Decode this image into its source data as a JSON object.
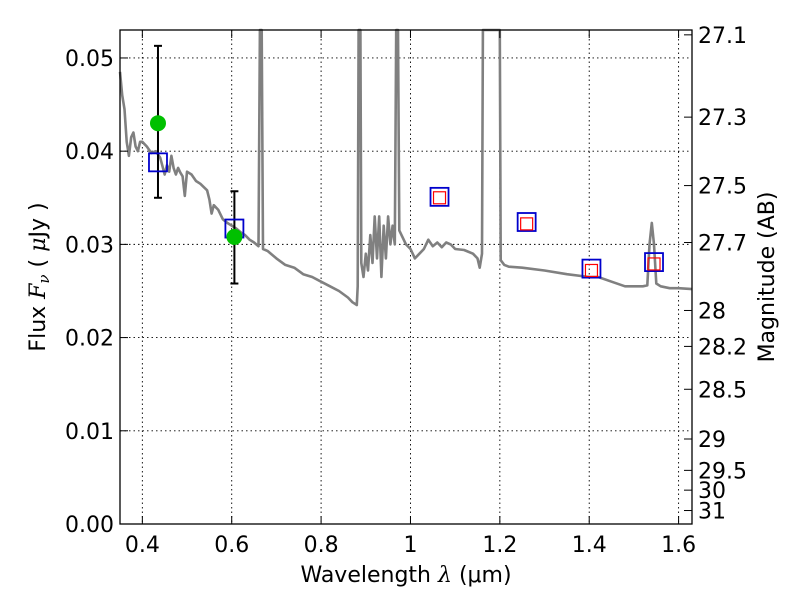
{
  "chart_data": {
    "type": "scatter",
    "x_axis": {
      "label_prefix": "Wavelength",
      "label_symbol": "λ",
      "label_unit": "(μm)",
      "range": [
        0.35,
        1.63
      ],
      "ticks": [
        0.4,
        0.6,
        0.8,
        1.0,
        1.2,
        1.4,
        1.6
      ],
      "tick_labels": [
        "0.4",
        "0.6",
        "0.8",
        "1",
        "1.2",
        "1.4",
        "1.6"
      ]
    },
    "y_axis_left": {
      "label_prefix": "Flux",
      "label_symbol": "F",
      "label_subscript": "ν",
      "label_unit_open": "(",
      "label_unit_mu": "μ",
      "label_unit_rest": "Jy )",
      "range": [
        0.0,
        0.053
      ],
      "ticks": [
        0.0,
        0.01,
        0.02,
        0.03,
        0.04,
        0.05
      ],
      "tick_labels": [
        "0.00",
        "0.01",
        "0.02",
        "0.03",
        "0.04",
        "0.05"
      ]
    },
    "y_axis_right": {
      "label": "Magnitude (AB)",
      "tick_labels": [
        "27.1",
        "27.3",
        "27.5",
        "27.7",
        "28",
        "28.2",
        "28.5",
        "29",
        "29.5",
        "30",
        "31"
      ]
    },
    "grid": true,
    "series": [
      {
        "kind": "line",
        "color": "#808080",
        "points": [
          [
            0.35,
            0.0485
          ],
          [
            0.355,
            0.046
          ],
          [
            0.36,
            0.0445
          ],
          [
            0.365,
            0.041
          ],
          [
            0.37,
            0.0395
          ],
          [
            0.375,
            0.0415
          ],
          [
            0.38,
            0.042
          ],
          [
            0.385,
            0.0405
          ],
          [
            0.39,
            0.04
          ],
          [
            0.395,
            0.041
          ],
          [
            0.4,
            0.041
          ],
          [
            0.41,
            0.0405
          ],
          [
            0.42,
            0.0398
          ],
          [
            0.43,
            0.04
          ],
          [
            0.44,
            0.0393
          ],
          [
            0.45,
            0.0375
          ],
          [
            0.455,
            0.0385
          ],
          [
            0.46,
            0.0378
          ],
          [
            0.465,
            0.0395
          ],
          [
            0.47,
            0.0382
          ],
          [
            0.475,
            0.0375
          ],
          [
            0.48,
            0.0382
          ],
          [
            0.485,
            0.0377
          ],
          [
            0.49,
            0.0373
          ],
          [
            0.495,
            0.0352
          ],
          [
            0.5,
            0.0378
          ],
          [
            0.51,
            0.0375
          ],
          [
            0.52,
            0.0368
          ],
          [
            0.53,
            0.0365
          ],
          [
            0.545,
            0.0358
          ],
          [
            0.55,
            0.0348
          ],
          [
            0.555,
            0.0333
          ],
          [
            0.56,
            0.0342
          ],
          [
            0.57,
            0.0337
          ],
          [
            0.58,
            0.0327
          ],
          [
            0.59,
            0.0323
          ],
          [
            0.6,
            0.032
          ],
          [
            0.61,
            0.0317
          ],
          [
            0.62,
            0.0313
          ],
          [
            0.63,
            0.031
          ],
          [
            0.64,
            0.0305
          ],
          [
            0.65,
            0.0302
          ],
          [
            0.66,
            0.0298
          ],
          [
            0.663,
            0.06
          ],
          [
            0.667,
            0.06
          ],
          [
            0.67,
            0.0295
          ],
          [
            0.68,
            0.0293
          ],
          [
            0.7,
            0.0285
          ],
          [
            0.72,
            0.0278
          ],
          [
            0.74,
            0.0275
          ],
          [
            0.76,
            0.0268
          ],
          [
            0.78,
            0.0265
          ],
          [
            0.8,
            0.026
          ],
          [
            0.82,
            0.0255
          ],
          [
            0.84,
            0.025
          ],
          [
            0.86,
            0.0243
          ],
          [
            0.87,
            0.0238
          ],
          [
            0.88,
            0.0235
          ],
          [
            0.882,
            0.0255
          ],
          [
            0.884,
            0.06
          ],
          [
            0.888,
            0.06
          ],
          [
            0.89,
            0.028
          ],
          [
            0.895,
            0.0265
          ],
          [
            0.9,
            0.029
          ],
          [
            0.905,
            0.0272
          ],
          [
            0.91,
            0.031
          ],
          [
            0.915,
            0.028
          ],
          [
            0.92,
            0.033
          ],
          [
            0.925,
            0.0285
          ],
          [
            0.93,
            0.033
          ],
          [
            0.935,
            0.0265
          ],
          [
            0.94,
            0.032
          ],
          [
            0.945,
            0.0285
          ],
          [
            0.95,
            0.033
          ],
          [
            0.955,
            0.03
          ],
          [
            0.96,
            0.032
          ],
          [
            0.965,
            0.03
          ],
          [
            0.968,
            0.06
          ],
          [
            0.972,
            0.06
          ],
          [
            0.975,
            0.0315
          ],
          [
            0.98,
            0.031
          ],
          [
            0.99,
            0.03
          ],
          [
            1.0,
            0.0295
          ],
          [
            1.01,
            0.0285
          ],
          [
            1.02,
            0.029
          ],
          [
            1.03,
            0.0295
          ],
          [
            1.04,
            0.0305
          ],
          [
            1.05,
            0.0298
          ],
          [
            1.06,
            0.0302
          ],
          [
            1.07,
            0.0297
          ],
          [
            1.08,
            0.0302
          ],
          [
            1.09,
            0.03
          ],
          [
            1.1,
            0.0295
          ],
          [
            1.12,
            0.0294
          ],
          [
            1.14,
            0.029
          ],
          [
            1.15,
            0.0285
          ],
          [
            1.155,
            0.0275
          ],
          [
            1.16,
            0.029
          ],
          [
            1.162,
            0.06
          ],
          [
            1.175,
            0.06
          ],
          [
            1.18,
            0.06
          ],
          [
            1.2,
            0.06
          ],
          [
            1.202,
            0.0283
          ],
          [
            1.21,
            0.0278
          ],
          [
            1.22,
            0.0276
          ],
          [
            1.25,
            0.0275
          ],
          [
            1.3,
            0.0272
          ],
          [
            1.35,
            0.0268
          ],
          [
            1.4,
            0.0265
          ],
          [
            1.42,
            0.0265
          ],
          [
            1.45,
            0.026
          ],
          [
            1.48,
            0.0255
          ],
          [
            1.5,
            0.0255
          ],
          [
            1.52,
            0.0255
          ],
          [
            1.53,
            0.0256
          ],
          [
            1.535,
            0.03
          ],
          [
            1.54,
            0.0323
          ],
          [
            1.545,
            0.03
          ],
          [
            1.55,
            0.0258
          ],
          [
            1.56,
            0.0255
          ],
          [
            1.58,
            0.0253
          ],
          [
            1.6,
            0.0253
          ],
          [
            1.63,
            0.0252
          ]
        ]
      },
      {
        "kind": "observed",
        "marker": "circle",
        "color": "#00c000",
        "points": [
          {
            "x": 0.435,
            "y": 0.043,
            "err_low": 0.035,
            "err_high": 0.0513
          },
          {
            "x": 0.606,
            "y": 0.0308,
            "err_low": 0.0258,
            "err_high": 0.0357
          }
        ]
      },
      {
        "kind": "model_photometry",
        "marker": "square",
        "color": "#0000cc",
        "points": [
          {
            "x": 0.435,
            "y": 0.0388
          },
          {
            "x": 0.606,
            "y": 0.0317
          },
          {
            "x": 1.065,
            "y": 0.0351
          },
          {
            "x": 1.26,
            "y": 0.0324
          },
          {
            "x": 1.405,
            "y": 0.0274
          },
          {
            "x": 1.545,
            "y": 0.0281
          }
        ]
      },
      {
        "kind": "upper_marker",
        "marker": "square",
        "color": "#ff0000",
        "points": [
          {
            "x": 1.065,
            "y": 0.035
          },
          {
            "x": 1.26,
            "y": 0.0322
          },
          {
            "x": 1.405,
            "y": 0.0272
          },
          {
            "x": 1.545,
            "y": 0.0279
          }
        ]
      }
    ]
  }
}
